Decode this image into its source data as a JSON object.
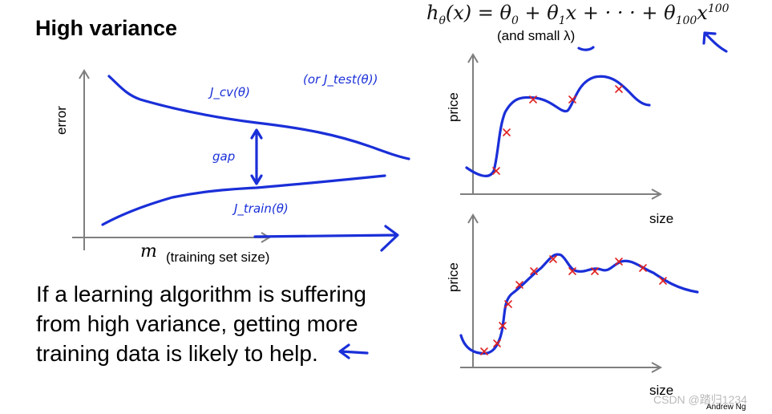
{
  "slide": {
    "title": "High variance",
    "formula": {
      "lhs": "h",
      "lhs_sub": "θ",
      "lhs_arg": "(x) = ",
      "t0": "θ",
      "t0_sub": "0",
      "plus1": " + ",
      "t1": "θ",
      "t1_sub": "1",
      "t1_var": "x",
      "dots": " + · · · + ",
      "t100": "θ",
      "t100_sub": "100",
      "t100_var": "x",
      "t100_sup": "100"
    },
    "formula_note": "(and small λ)",
    "statement_line1": "If a learning algorithm is suffering",
    "statement_line2": "from high variance, getting more",
    "statement_line3": "training data is likely to help.",
    "credit": "Andrew Ng",
    "watermark": "CSDN @踏归1234"
  },
  "learning_curve": {
    "y_axis_label": "error",
    "x_axis_label_symbol": "m",
    "x_axis_label_text": "(training set size)",
    "cv_curve_label": "J_cv(θ)",
    "train_curve_label": "J_train(θ)",
    "side_note": "(or J_test(θ))",
    "gap_label": "gap"
  },
  "fits": [
    {
      "y_axis_label": "price",
      "x_axis_label": "size",
      "points": 5
    },
    {
      "y_axis_label": "price",
      "x_axis_label": "size",
      "points": 12
    }
  ],
  "colors": {
    "ink": "#1a2fd8",
    "cross": "#e02020",
    "axis": "#7f7f7f"
  }
}
